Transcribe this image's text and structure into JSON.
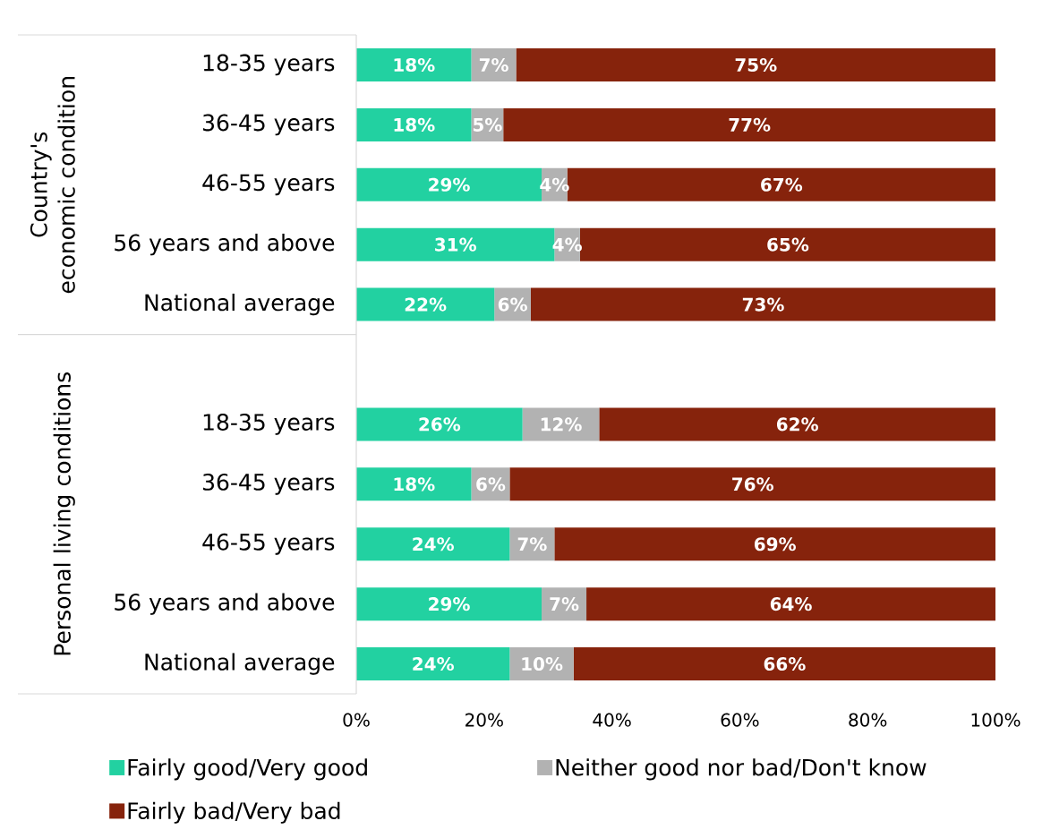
{
  "chart_data": {
    "type": "bar",
    "orientation": "horizontal",
    "stacked": true,
    "categories": [
      "18-35 years",
      "36-45 years",
      "46-55 years",
      "56 years and above",
      "National average",
      null,
      "18-35 years",
      "36-45 years",
      "46-55 years",
      "56 years and above",
      "National average"
    ],
    "series": [
      {
        "name": "Fairly good/Very good",
        "color": "#22d1a1",
        "values": [
          18,
          18,
          29,
          31,
          21.6,
          null,
          26,
          18,
          24,
          29,
          24
        ],
        "value_labels": [
          "18%",
          "18%",
          "29%",
          "31%",
          "22%",
          null,
          "26%",
          "18%",
          "24%",
          "29%",
          "24%"
        ]
      },
      {
        "name": "Neither good nor bad/Don't know",
        "color": "#b2b2b2",
        "values": [
          7,
          5,
          4,
          4,
          5.7,
          null,
          12,
          6,
          7,
          7,
          10
        ],
        "value_labels": [
          "7%",
          "5%",
          "4%",
          "4%",
          "6%",
          null,
          "12%",
          "6%",
          "7%",
          "7%",
          "10%"
        ]
      },
      {
        "name": "Fairly bad/Very bad",
        "color": "#86230c",
        "values": [
          75,
          77,
          67,
          65,
          72.7,
          null,
          62,
          76,
          69,
          64,
          66
        ],
        "value_labels": [
          "75%",
          "77%",
          "67%",
          "65%",
          "73%",
          null,
          "62%",
          "76%",
          "69%",
          "64%",
          "66%"
        ]
      }
    ],
    "xlim": [
      0,
      100
    ],
    "xticks": [
      {
        "value": 0,
        "label": "0%"
      },
      {
        "value": 20,
        "label": "20%"
      },
      {
        "value": 40,
        "label": "40%"
      },
      {
        "value": 60,
        "label": "60%"
      },
      {
        "value": 80,
        "label": "80%"
      },
      {
        "value": 100,
        "label": "100%"
      }
    ],
    "legend": "bottom",
    "annotations": [
      "Country's economic condition",
      "Personal living conditions"
    ]
  }
}
